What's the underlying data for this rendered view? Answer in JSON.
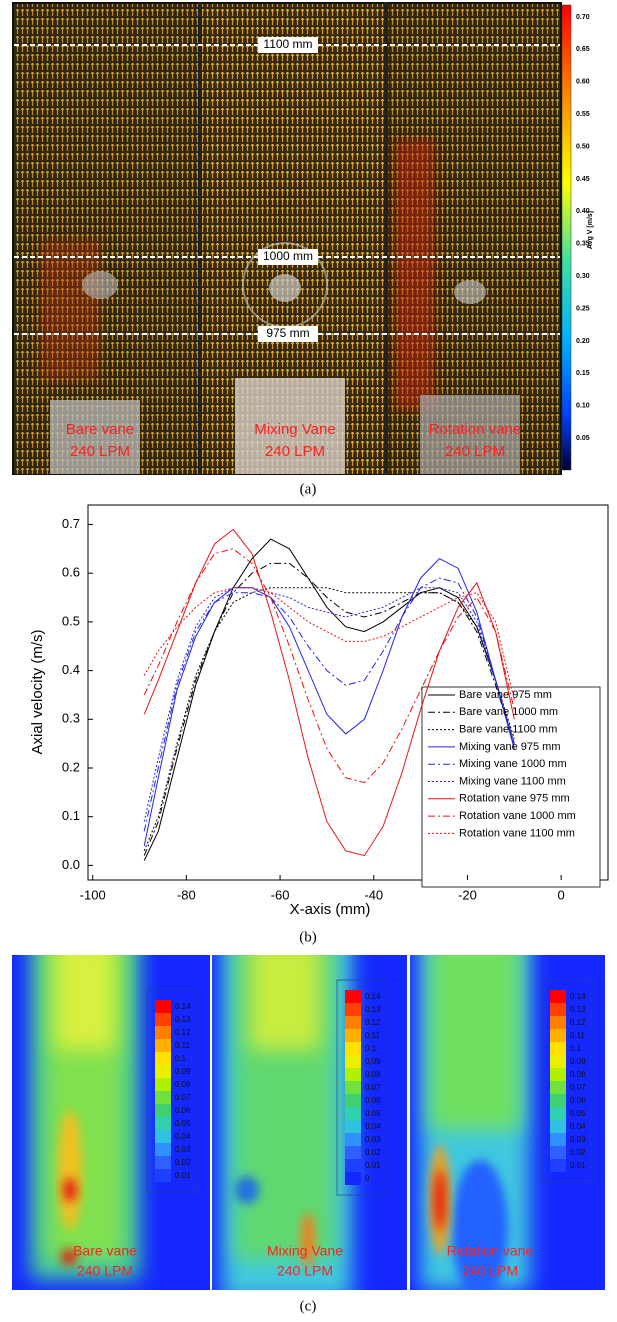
{
  "panel_a": {
    "depth_labels": [
      "1100 mm",
      "1000 mm",
      "975 mm"
    ],
    "cases": [
      [
        "Bare vane",
        "240 LPM"
      ],
      [
        "Mixing Vane",
        "240 LPM"
      ],
      [
        "Rotation vane",
        "240 LPM"
      ]
    ],
    "colorbar_title": "Avg V [m/s]",
    "colorbar_labels": [
      "0.70",
      "0.65",
      "0.60",
      "0.55",
      "0.50",
      "0.45",
      "0.40",
      "0.35",
      "0.30",
      "0.25",
      "0.20",
      "0.15",
      "0.10",
      "0.05"
    ]
  },
  "captions": [
    "(a)",
    "(b)",
    "(c)"
  ],
  "chart_data": {
    "type": "line",
    "x_label": "X-axis (mm)",
    "y_label": "Axial velocity (m/s)",
    "x": [
      -89,
      -86,
      -82,
      -78,
      -74,
      -70,
      -66,
      -62,
      -58,
      -54,
      -50,
      -46,
      -42,
      -38,
      -34,
      -30,
      -26,
      -22,
      -18,
      -14,
      -10
    ],
    "xlim": [
      -101,
      10
    ],
    "xticks": [
      -100,
      -80,
      -60,
      -40,
      -20,
      0
    ],
    "ylim": [
      -0.03,
      0.74
    ],
    "yticks": [
      {
        "value": 0,
        "label": "0.0"
      },
      0.1,
      0.2,
      0.3,
      0.4,
      0.5,
      0.6,
      0.7
    ],
    "legend": "lower-right",
    "series": [
      {
        "name": "Bare vane 975 mm",
        "color": "#000000",
        "dash": "solid",
        "values": [
          0.01,
          0.07,
          0.22,
          0.37,
          0.48,
          0.57,
          0.63,
          0.67,
          0.65,
          0.59,
          0.53,
          0.49,
          0.48,
          0.5,
          0.53,
          0.56,
          0.57,
          0.55,
          0.49,
          0.38,
          0.24
        ]
      },
      {
        "name": "Bare vane 1000 mm",
        "color": "#000000",
        "dash": "dashdot",
        "values": [
          0.02,
          0.09,
          0.24,
          0.38,
          0.48,
          0.56,
          0.6,
          0.62,
          0.62,
          0.59,
          0.55,
          0.52,
          0.51,
          0.52,
          0.54,
          0.56,
          0.56,
          0.54,
          0.48,
          0.37,
          0.25
        ]
      },
      {
        "name": "Bare vane 1100 mm",
        "color": "#000000",
        "dash": "dot",
        "values": [
          0.03,
          0.1,
          0.25,
          0.39,
          0.48,
          0.54,
          0.56,
          0.57,
          0.57,
          0.57,
          0.57,
          0.56,
          0.56,
          0.56,
          0.56,
          0.56,
          0.56,
          0.54,
          0.49,
          0.38,
          0.26
        ]
      },
      {
        "name": "Mixing vane 975 mm",
        "color": "#2222ee",
        "dash": "solid",
        "values": [
          0.04,
          0.18,
          0.36,
          0.47,
          0.54,
          0.57,
          0.57,
          0.55,
          0.49,
          0.4,
          0.31,
          0.27,
          0.3,
          0.4,
          0.51,
          0.59,
          0.63,
          0.61,
          0.52,
          0.38,
          0.24
        ]
      },
      {
        "name": "Mixing vane 1000 mm",
        "color": "#2222ee",
        "dash": "dashdot",
        "values": [
          0.07,
          0.2,
          0.37,
          0.48,
          0.54,
          0.56,
          0.56,
          0.55,
          0.51,
          0.45,
          0.4,
          0.37,
          0.38,
          0.44,
          0.51,
          0.57,
          0.59,
          0.58,
          0.51,
          0.38,
          0.25
        ]
      },
      {
        "name": "Mixing vane 1100 mm",
        "color": "#2222ee",
        "dash": "dot",
        "values": [
          0.09,
          0.22,
          0.38,
          0.49,
          0.55,
          0.57,
          0.57,
          0.56,
          0.55,
          0.53,
          0.52,
          0.51,
          0.52,
          0.53,
          0.55,
          0.57,
          0.57,
          0.56,
          0.5,
          0.38,
          0.25
        ]
      },
      {
        "name": "Rotation vane 975 mm",
        "color": "#ee1111",
        "dash": "solid",
        "values": [
          0.31,
          0.38,
          0.48,
          0.58,
          0.66,
          0.69,
          0.64,
          0.52,
          0.38,
          0.22,
          0.09,
          0.03,
          0.02,
          0.08,
          0.19,
          0.32,
          0.44,
          0.53,
          0.58,
          0.48,
          0.3
        ]
      },
      {
        "name": "Rotation vane 1000 mm",
        "color": "#ee1111",
        "dash": "dashdot",
        "values": [
          0.35,
          0.41,
          0.5,
          0.58,
          0.64,
          0.65,
          0.62,
          0.55,
          0.45,
          0.34,
          0.24,
          0.18,
          0.17,
          0.21,
          0.28,
          0.36,
          0.44,
          0.51,
          0.55,
          0.48,
          0.32
        ]
      },
      {
        "name": "Rotation vane 1100 mm",
        "color": "#ee1111",
        "dash": "dot",
        "values": [
          0.39,
          0.44,
          0.49,
          0.53,
          0.56,
          0.57,
          0.57,
          0.56,
          0.53,
          0.5,
          0.48,
          0.46,
          0.46,
          0.47,
          0.49,
          0.51,
          0.53,
          0.55,
          0.56,
          0.5,
          0.34
        ]
      }
    ]
  },
  "panel_c": {
    "cases": [
      [
        "Bare vane",
        "240 LPM"
      ],
      [
        "Mixing Vane",
        "240 LPM"
      ],
      [
        "Rotation vane",
        "240 LPM"
      ]
    ],
    "colorbar_labels": [
      [
        "0.14",
        "0.13",
        "0.12",
        "0.11",
        "0.1",
        "0.09",
        "0.08",
        "0.07",
        "0.06",
        "0.05",
        "0.04",
        "0.03",
        "0.02",
        "0.01"
      ],
      [
        "0.14",
        "0.13",
        "0.12",
        "0.11",
        "0.1",
        "0.09",
        "0.08",
        "0.07",
        "0.06",
        "0.05",
        "0.04",
        "0.03",
        "0.02",
        "0.01",
        "0"
      ],
      [
        "0.14",
        "0.13",
        "0.12",
        "0.11",
        "0.1",
        "0.09",
        "0.08",
        "0.07",
        "0.06",
        "0.05",
        "0.04",
        "0.03",
        "0.02",
        "0.01"
      ]
    ]
  }
}
